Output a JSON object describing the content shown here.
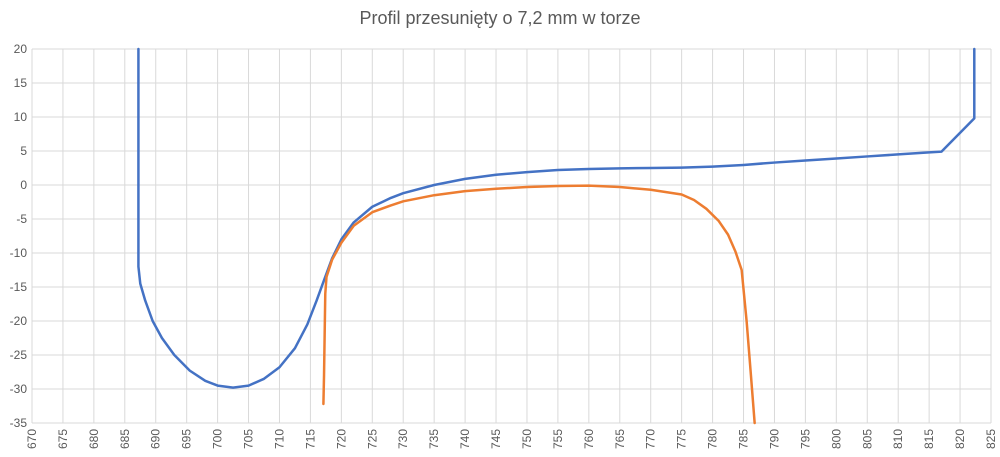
{
  "chart_data": {
    "type": "line",
    "title": "Profil przesunięty o 7,2 mm w torze",
    "xlabel": "",
    "ylabel": "",
    "xlim": [
      670,
      825
    ],
    "ylim": [
      -35,
      20
    ],
    "x_ticks": [
      670,
      675,
      680,
      685,
      690,
      695,
      700,
      705,
      710,
      715,
      720,
      725,
      730,
      735,
      740,
      745,
      750,
      755,
      760,
      765,
      770,
      775,
      780,
      785,
      790,
      795,
      800,
      805,
      810,
      815,
      820,
      825
    ],
    "y_ticks": [
      20,
      15,
      10,
      5,
      0,
      -5,
      -10,
      -15,
      -20,
      -25,
      -30,
      -35
    ],
    "grid": true,
    "legend": "none",
    "series": [
      {
        "color": "#4472C4",
        "points": [
          [
            687.2,
            20
          ],
          [
            687.2,
            5
          ],
          [
            687.2,
            -5
          ],
          [
            687.2,
            -12
          ],
          [
            687.5,
            -14.5
          ],
          [
            688.3,
            -17
          ],
          [
            689.5,
            -20
          ],
          [
            691,
            -22.5
          ],
          [
            693,
            -25
          ],
          [
            695.5,
            -27.3
          ],
          [
            698,
            -28.8
          ],
          [
            700,
            -29.5
          ],
          [
            702.5,
            -29.8
          ],
          [
            705,
            -29.5
          ],
          [
            707.5,
            -28.5
          ],
          [
            710,
            -26.8
          ],
          [
            712.5,
            -24
          ],
          [
            714.5,
            -20.5
          ],
          [
            716,
            -17
          ],
          [
            717.2,
            -14
          ],
          [
            718.5,
            -10.8
          ],
          [
            720,
            -8
          ],
          [
            722,
            -5.5
          ],
          [
            725,
            -3.2
          ],
          [
            728,
            -1.9
          ],
          [
            730,
            -1.2
          ],
          [
            735,
            0
          ],
          [
            740,
            0.9
          ],
          [
            745,
            1.5
          ],
          [
            750,
            1.9
          ],
          [
            755,
            2.2
          ],
          [
            760,
            2.35
          ],
          [
            765,
            2.45
          ],
          [
            770,
            2.5
          ],
          [
            775,
            2.55
          ],
          [
            780,
            2.7
          ],
          [
            785,
            2.95
          ],
          [
            790,
            3.3
          ],
          [
            795,
            3.6
          ],
          [
            800,
            3.9
          ],
          [
            805,
            4.2
          ],
          [
            810,
            4.5
          ],
          [
            815,
            4.8
          ],
          [
            817,
            4.9
          ],
          [
            822.3,
            9.8
          ],
          [
            822.3,
            15
          ],
          [
            822.3,
            20
          ]
        ]
      },
      {
        "color": "#ED7D31",
        "points": [
          [
            717.1,
            -32.2
          ],
          [
            717.2,
            -28
          ],
          [
            717.3,
            -22
          ],
          [
            717.4,
            -16
          ],
          [
            717.6,
            -13.5
          ],
          [
            718.5,
            -11
          ],
          [
            720,
            -8.5
          ],
          [
            722,
            -6
          ],
          [
            725,
            -4
          ],
          [
            728,
            -3
          ],
          [
            730,
            -2.4
          ],
          [
            735,
            -1.5
          ],
          [
            740,
            -0.9
          ],
          [
            745,
            -0.55
          ],
          [
            750,
            -0.3
          ],
          [
            755,
            -0.15
          ],
          [
            760,
            -0.1
          ],
          [
            765,
            -0.3
          ],
          [
            770,
            -0.7
          ],
          [
            775,
            -1.4
          ],
          [
            777,
            -2.2
          ],
          [
            779,
            -3.5
          ],
          [
            781,
            -5.3
          ],
          [
            782.5,
            -7.3
          ],
          [
            783.7,
            -9.8
          ],
          [
            784.7,
            -12.5
          ],
          [
            785.5,
            -20
          ],
          [
            786.2,
            -28
          ],
          [
            786.8,
            -35
          ]
        ]
      }
    ]
  }
}
